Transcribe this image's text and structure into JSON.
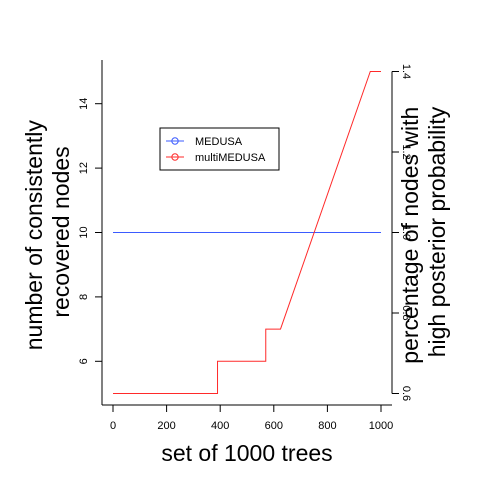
{
  "chart_data": {
    "type": "line",
    "xlabel": "set of 1000 trees",
    "ylabel_left": [
      "number of consistently",
      "recovered nodes"
    ],
    "ylabel_right": [
      "percentage of nodes with",
      "high posterior probability"
    ],
    "xlim": [
      0,
      1000
    ],
    "ylim_left": [
      5,
      15
    ],
    "ylim_right": [
      0.6,
      1.4
    ],
    "x_ticks": [
      "0",
      "200",
      "400",
      "600",
      "800",
      "1000"
    ],
    "y_left_ticks": [
      "6",
      "8",
      "10",
      "12",
      "14"
    ],
    "y_right_ticks": [
      "0.6",
      "0.8",
      "1.0",
      "1.2",
      "1.4"
    ],
    "grid": false,
    "legend_position": "upper-left inside",
    "series": [
      {
        "name": "MEDUSA",
        "color": "#3b5bff",
        "axis": "left",
        "points": [
          [
            0,
            10
          ],
          [
            1000,
            10
          ]
        ]
      },
      {
        "name": "multiMEDUSA",
        "color": "#ff2a2a",
        "axis": "left",
        "points": [
          [
            0,
            5
          ],
          [
            390,
            5
          ],
          [
            390,
            6
          ],
          [
            570,
            6
          ],
          [
            570,
            7
          ],
          [
            625,
            7
          ],
          [
            960,
            15
          ],
          [
            1000,
            15
          ]
        ]
      }
    ]
  }
}
